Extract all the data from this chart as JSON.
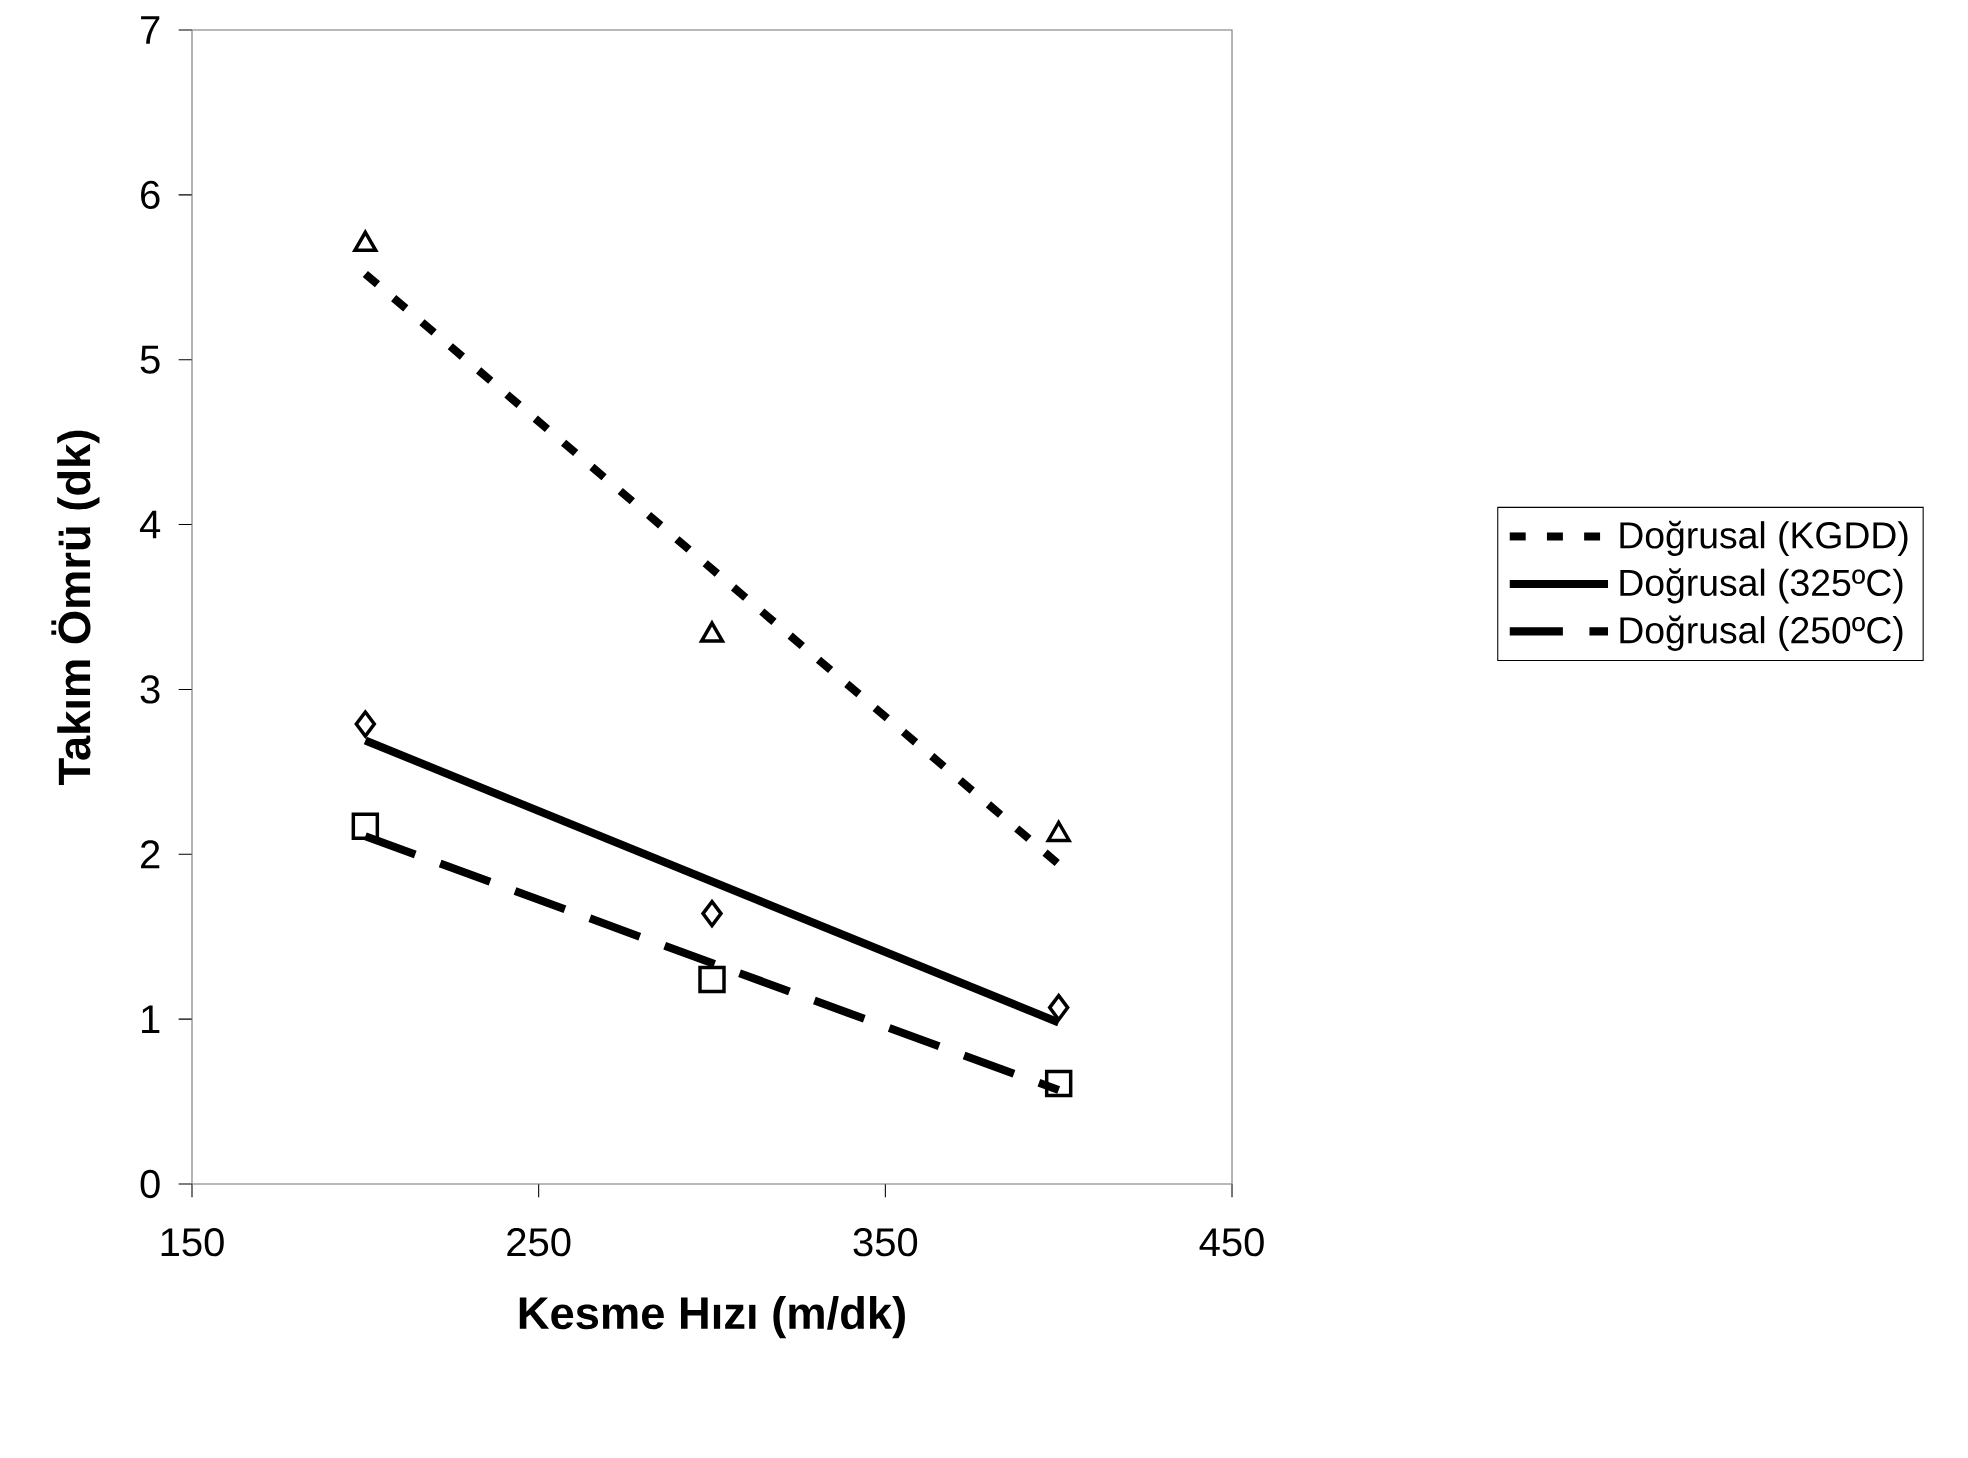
{
  "chart_data": {
    "type": "scatter",
    "xlabel": "Kesme Hızı (m/dk)",
    "ylabel": "Takım Ömrü (dk)",
    "xlim": [
      150,
      450
    ],
    "xticks": [
      150,
      250,
      350,
      450
    ],
    "ylim": [
      0,
      7
    ],
    "yticks": [
      0,
      1,
      2,
      3,
      4,
      5,
      6,
      7
    ],
    "legend": "right",
    "grid": false,
    "series": [
      {
        "marker": "triangle",
        "color": "#000000",
        "x": [
          200,
          300,
          400
        ],
        "values": [
          5.7,
          3.33,
          2.12
        ]
      },
      {
        "marker": "diamond",
        "color": "#000000",
        "x": [
          200,
          300,
          400
        ],
        "values": [
          2.79,
          1.64,
          1.07
        ]
      },
      {
        "marker": "square",
        "color": "#000000",
        "x": [
          200,
          300,
          400
        ],
        "values": [
          2.17,
          1.24,
          0.61
        ]
      },
      {
        "type": "line",
        "name": "Doğrusal (KGDD)",
        "line_style": "dotted",
        "marker": "none",
        "color": "#000000",
        "x": [
          200,
          400
        ],
        "values": [
          5.52,
          1.94
        ]
      },
      {
        "type": "line",
        "name": "Doğrusal (325ºC)",
        "line_style": "solid",
        "marker": "none",
        "color": "#000000",
        "x": [
          200,
          400
        ],
        "values": [
          2.69,
          0.98
        ]
      },
      {
        "type": "line",
        "name": "Doğrusal (250ºC)",
        "line_style": "dashed",
        "marker": "none",
        "color": "#000000",
        "x": [
          200,
          400
        ],
        "values": [
          2.11,
          0.57
        ]
      }
    ]
  }
}
